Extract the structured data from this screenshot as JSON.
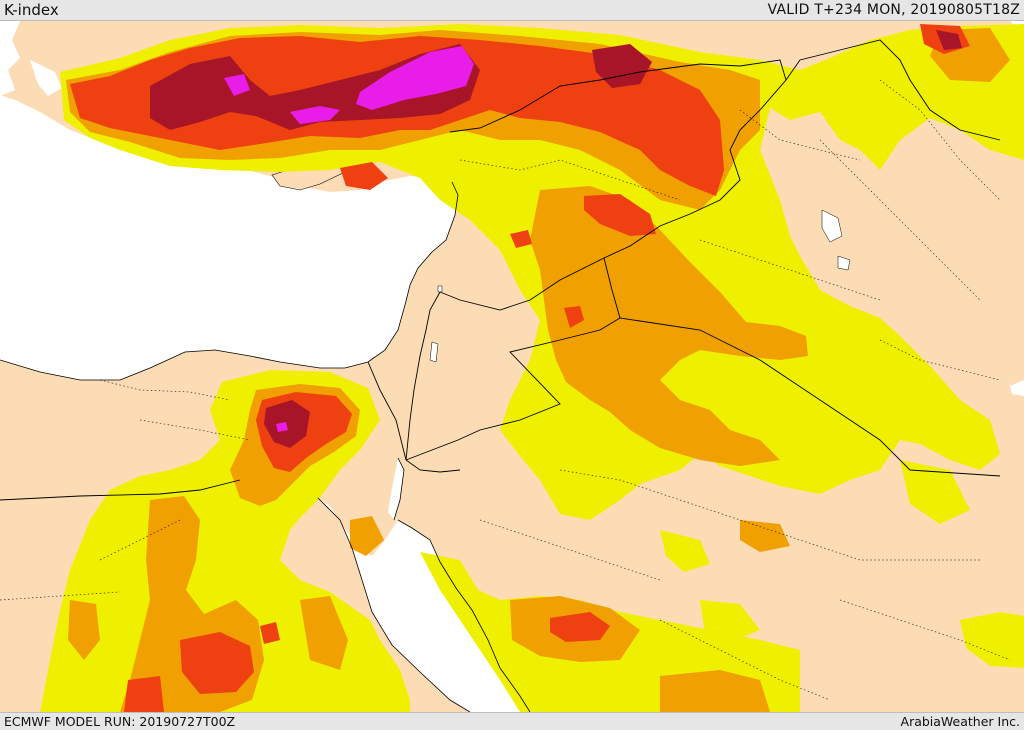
{
  "header": {
    "title": "K-index",
    "valid": "VALID T+234 MON, 20190805T18Z"
  },
  "footer": {
    "model_run": "ECMWF MODEL RUN: 20190727T00Z",
    "credit": "ArabiaWeather Inc."
  },
  "colors": {
    "land": "#fcdcb4",
    "sea": "#ffffff",
    "yellow": "#eef000",
    "orange": "#f0a000",
    "red": "#ee4010",
    "darkred": "#a81428",
    "magenta": "#e81ee8",
    "border": "#000000"
  }
}
